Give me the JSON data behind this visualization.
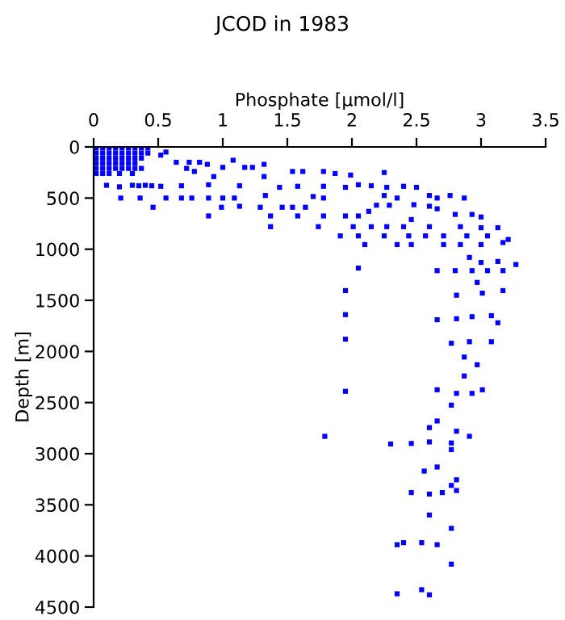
{
  "chart_data": {
    "type": "scatter",
    "title": "JCOD in 1983",
    "xlabel": "Phosphate [µmol/l]",
    "ylabel": "Depth [m]",
    "xlim": [
      0,
      3.5
    ],
    "ylim": [
      4500,
      0
    ],
    "xticks": [
      0,
      0.5,
      1,
      1.5,
      2,
      2.5,
      3,
      3.5
    ],
    "yticks": [
      0,
      500,
      1000,
      1500,
      2000,
      2500,
      3000,
      3500,
      4000,
      4500
    ],
    "grid": false,
    "marker": "square",
    "series": [
      {
        "color": "#0000ff",
        "x": [
          0.02,
          0.07,
          0.12,
          0.17,
          0.22,
          0.27,
          0.32,
          0.37,
          0.42,
          0.02,
          0.07,
          0.12,
          0.17,
          0.22,
          0.27,
          0.32,
          0.37,
          0.42,
          0.02,
          0.07,
          0.12,
          0.17,
          0.22,
          0.27,
          0.32,
          0.37,
          0.02,
          0.07,
          0.12,
          0.17,
          0.22,
          0.27,
          0.32,
          0.02,
          0.07,
          0.12,
          0.17,
          0.22,
          0.27,
          0.32,
          0.37,
          0.02,
          0.07,
          0.12,
          0.2,
          0.3,
          0.1,
          0.2,
          0.3,
          0.35,
          0.4,
          0.45,
          0.56,
          0.52,
          0.64,
          0.74,
          0.82,
          0.88,
          1.0,
          1.08,
          1.17,
          1.23,
          1.32,
          0.72,
          0.78,
          0.93,
          1.32,
          1.54,
          1.62,
          1.78,
          1.87,
          1.99,
          2.25,
          0.52,
          0.68,
          0.89,
          1.13,
          1.44,
          1.58,
          1.78,
          1.95,
          2.05,
          2.15,
          2.27,
          2.4,
          2.5,
          0.21,
          0.36,
          0.56,
          0.68,
          0.76,
          0.89,
          1.0,
          1.09,
          1.33,
          1.7,
          1.78,
          2.25,
          2.35,
          2.6,
          2.66,
          2.76,
          2.87,
          0.46,
          0.99,
          1.13,
          1.29,
          1.46,
          1.54,
          1.64,
          2.13,
          2.19,
          2.29,
          2.48,
          2.6,
          2.66,
          0.89,
          1.37,
          1.58,
          1.78,
          1.95,
          2.05,
          2.46,
          2.8,
          2.93,
          3.0,
          1.37,
          1.74,
          2.01,
          2.15,
          2.27,
          2.4,
          2.6,
          2.84,
          3.0,
          3.13,
          1.91,
          2.05,
          2.25,
          2.44,
          2.57,
          2.71,
          2.89,
          3.05,
          3.21,
          2.1,
          2.35,
          2.46,
          2.71,
          2.84,
          3.0,
          3.17,
          2.91,
          3.0,
          3.13,
          3.27,
          2.05,
          2.66,
          2.8,
          2.93,
          3.05,
          3.17,
          1.95,
          2.81,
          3.01,
          3.17,
          2.97,
          1.95,
          2.66,
          2.81,
          2.93,
          3.08,
          3.13,
          1.95,
          2.77,
          2.91,
          3.08,
          2.87,
          2.97,
          2.87,
          1.95,
          2.66,
          2.81,
          2.93,
          3.01,
          2.77,
          2.66,
          2.6,
          2.81,
          1.79,
          2.3,
          2.46,
          2.6,
          2.77,
          2.91,
          2.77,
          2.56,
          2.66,
          2.81,
          2.77,
          2.46,
          2.6,
          2.7,
          2.81,
          2.6,
          2.77,
          2.35,
          2.4,
          2.54,
          2.66,
          2.77,
          2.35,
          2.54,
          2.6
        ],
        "values": [
          10,
          10,
          10,
          10,
          10,
          10,
          10,
          10,
          10,
          60,
          60,
          60,
          60,
          60,
          60,
          60,
          60,
          60,
          110,
          110,
          110,
          110,
          110,
          110,
          110,
          110,
          160,
          160,
          160,
          160,
          160,
          160,
          160,
          210,
          210,
          210,
          210,
          210,
          210,
          210,
          210,
          260,
          260,
          260,
          260,
          260,
          375,
          390,
          375,
          380,
          375,
          380,
          50,
          80,
          150,
          150,
          150,
          170,
          200,
          130,
          200,
          200,
          170,
          210,
          240,
          290,
          290,
          240,
          240,
          240,
          260,
          275,
          250,
          385,
          380,
          370,
          380,
          395,
          385,
          385,
          395,
          370,
          380,
          395,
          385,
          395,
          500,
          500,
          500,
          500,
          500,
          500,
          500,
          500,
          475,
          485,
          500,
          475,
          500,
          475,
          500,
          475,
          500,
          590,
          590,
          580,
          590,
          590,
          590,
          590,
          630,
          570,
          570,
          565,
          580,
          605,
          675,
          675,
          675,
          675,
          675,
          675,
          710,
          660,
          660,
          685,
          780,
          780,
          780,
          780,
          780,
          780,
          780,
          780,
          790,
          790,
          870,
          870,
          870,
          870,
          870,
          870,
          870,
          870,
          905,
          955,
          955,
          955,
          955,
          955,
          955,
          935,
          1080,
          1130,
          1120,
          1150,
          1185,
          1210,
          1210,
          1210,
          1210,
          1210,
          1405,
          1450,
          1430,
          1405,
          1325,
          1640,
          1690,
          1680,
          1660,
          1650,
          1720,
          1880,
          1920,
          1905,
          1905,
          2055,
          2130,
          2240,
          2390,
          2375,
          2410,
          2410,
          2375,
          2525,
          2680,
          2745,
          2780,
          2830,
          2905,
          2900,
          2885,
          2895,
          2830,
          2960,
          3170,
          3130,
          3255,
          3310,
          3380,
          3395,
          3380,
          3360,
          3600,
          3730,
          3890,
          3870,
          3870,
          3890,
          4080,
          4370,
          4330,
          4380
        ]
      }
    ]
  }
}
